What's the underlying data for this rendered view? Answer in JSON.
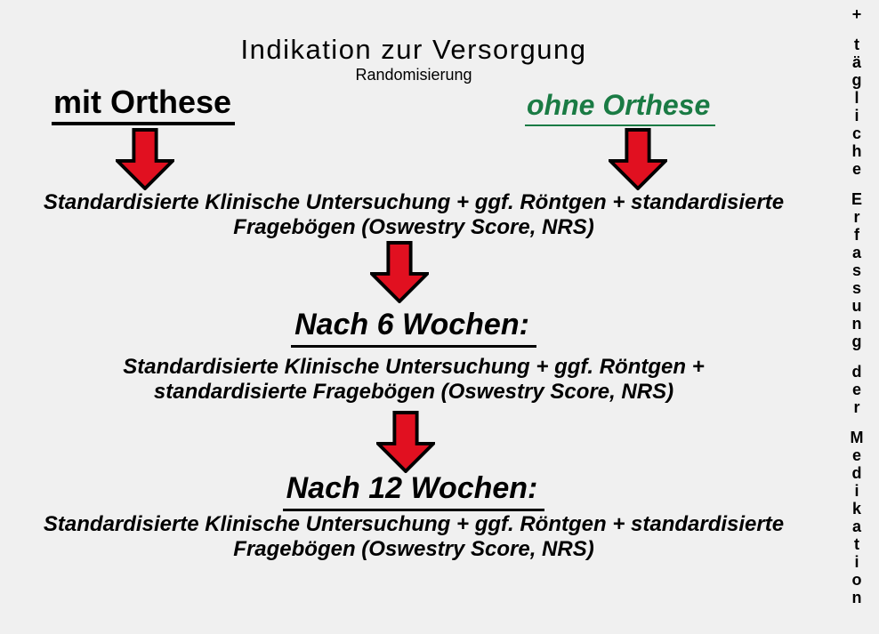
{
  "colors": {
    "page_bg": "#f0f0f0",
    "text_black": "#000000",
    "arrow_red": "#e11020",
    "green_accent": "#1a7b44"
  },
  "icons": {
    "down_arrow": "⬇"
  },
  "header": {
    "title": "Indikation zur Versorgung",
    "subtitle": "Randomisierung"
  },
  "branches": {
    "left": {
      "label": "mit Orthese"
    },
    "right": {
      "label": "ohne Orthese"
    }
  },
  "stages": [
    {
      "heading": "",
      "line1": "Standardisierte Klinische Untersuchung + ggf. Röntgen + standardisierte",
      "line2": "Fragebögen (Oswestry Score, NRS)"
    },
    {
      "heading": "Nach 6 Wochen:",
      "line1": "Standardisierte Klinische Untersuchung + ggf. Röntgen +",
      "line2": "standardisierte Fragebögen (Oswestry Score, NRS)"
    },
    {
      "heading": "Nach 12 Wochen:",
      "line1": "Standardisierte Klinische Untersuchung + ggf. Röntgen + standardisierte",
      "line2": "Fragebögen (Oswestry Score, NRS)"
    }
  ],
  "sidebar": {
    "vertical_text": "+ tägliche Erfassung der Medikation"
  }
}
